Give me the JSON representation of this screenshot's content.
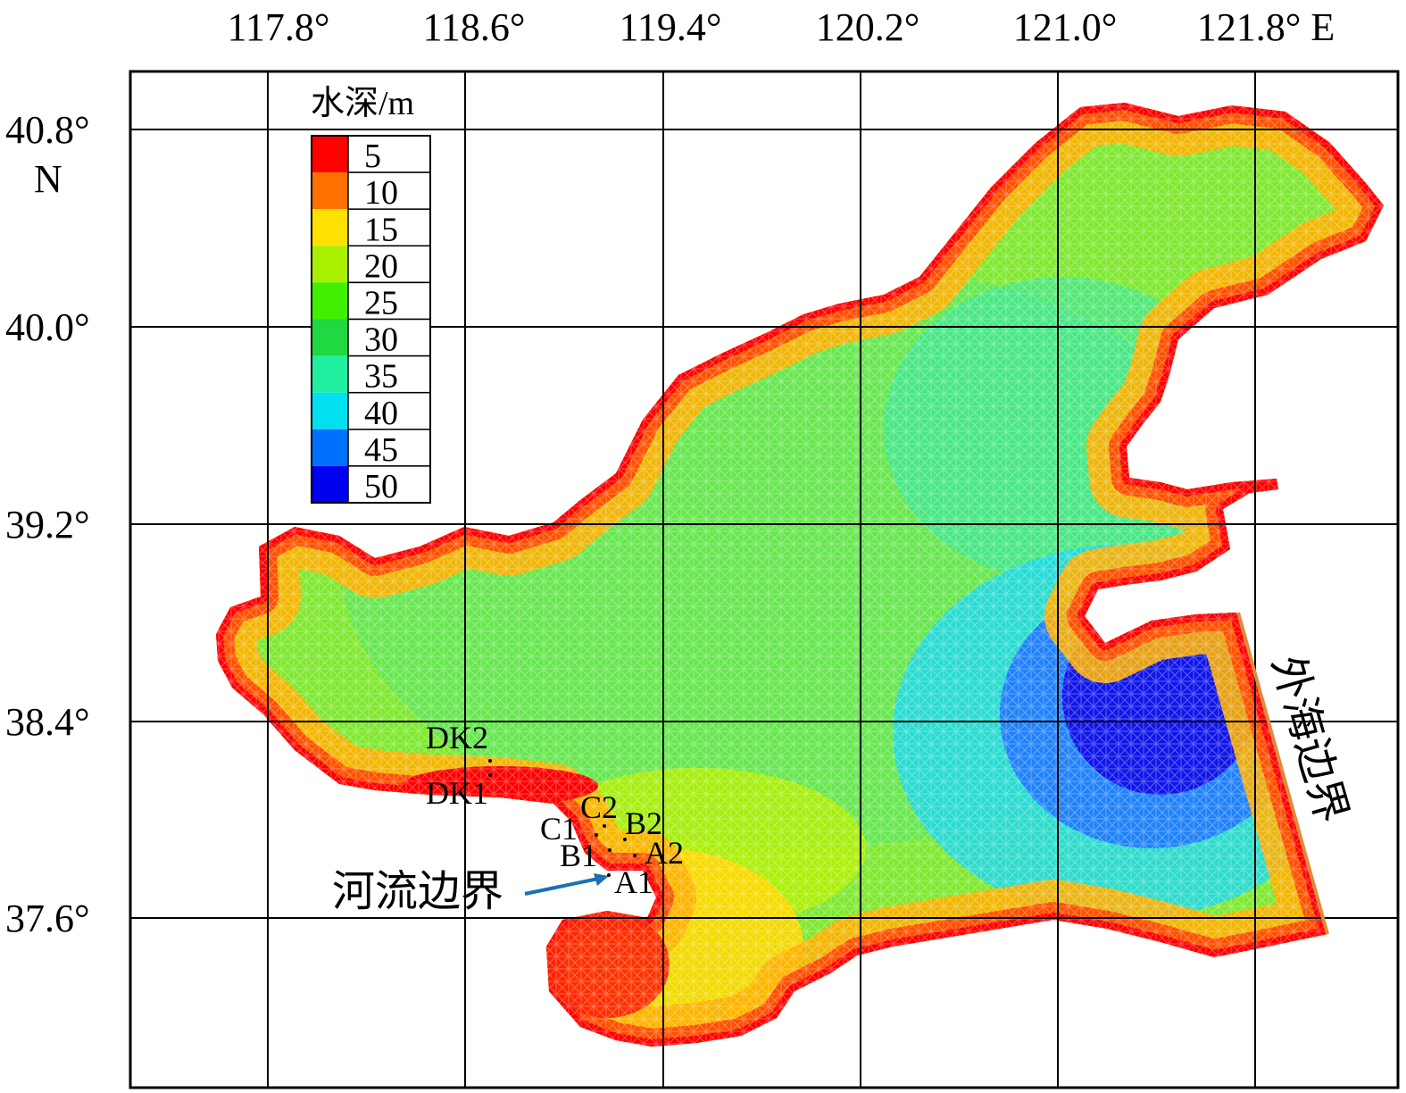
{
  "map": {
    "lon_ticks": [
      "117.8°",
      "118.6°",
      "119.4°",
      "120.2°",
      "121.0°",
      "121.8° E"
    ],
    "lat_ticks": [
      "40.8°",
      "40.0°",
      "39.2°",
      "38.4°",
      "37.6°"
    ],
    "lat_unit": "N"
  },
  "legend": {
    "title": "水深/m",
    "entries": [
      {
        "value": "5",
        "color": "#ff0000"
      },
      {
        "value": "10",
        "color": "#ff7000"
      },
      {
        "value": "15",
        "color": "#ffe000"
      },
      {
        "value": "20",
        "color": "#a8f000"
      },
      {
        "value": "25",
        "color": "#40f000"
      },
      {
        "value": "30",
        "color": "#20d840"
      },
      {
        "value": "35",
        "color": "#20f0a0"
      },
      {
        "value": "40",
        "color": "#00e0f0"
      },
      {
        "value": "45",
        "color": "#0070ff"
      },
      {
        "value": "50",
        "color": "#0000f0"
      }
    ]
  },
  "stations": [
    "DK2",
    "DK1",
    "C2",
    "C1",
    "B2",
    "B1",
    "A2",
    "A1"
  ],
  "annotations": {
    "river_boundary": "河流边界",
    "open_sea_boundary": "外海边界"
  },
  "colors": {
    "open_sea_boundary_line": "#e08a3c",
    "river_arrow": "#1a6fb5",
    "mesh_line": "rgba(255,255,255,0.35)"
  }
}
